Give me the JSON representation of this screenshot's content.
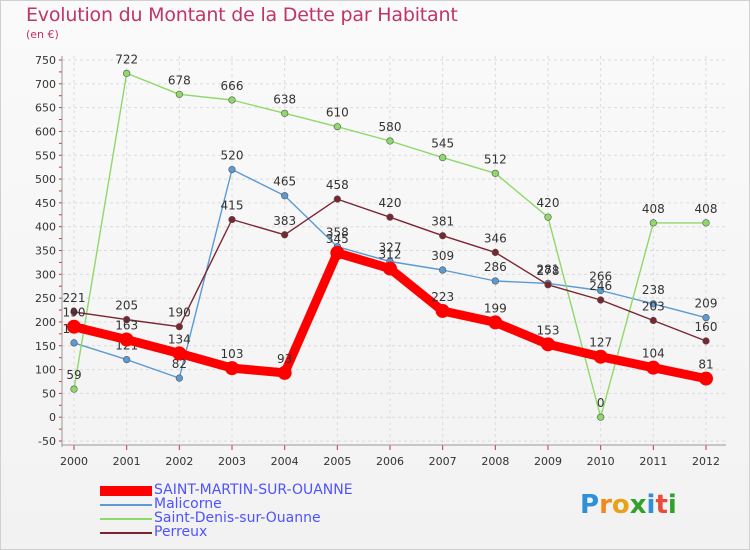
{
  "title": "Evolution du Montant de la Dette par Habitant",
  "subtitle": "(en €)",
  "logo": {
    "text": "Proxiti"
  },
  "chart_data": {
    "type": "line",
    "title": "Evolution du Montant de la Dette par Habitant",
    "ylabel": "(en €)",
    "x": [
      "2000",
      "2001",
      "2002",
      "2003",
      "2004",
      "2005",
      "2006",
      "2007",
      "2008",
      "2009",
      "2010",
      "2011",
      "2012"
    ],
    "ylim": [
      -50,
      750
    ],
    "yticks": [
      -50,
      0,
      50,
      100,
      150,
      200,
      250,
      300,
      350,
      400,
      450,
      500,
      550,
      600,
      650,
      700,
      750
    ],
    "grid": true,
    "legend": "bottom-left",
    "series": [
      {
        "name": "SAINT-MARTIN-SUR-OUANNE",
        "color": "#ff0000",
        "values": [
          190,
          163,
          134,
          103,
          93,
          345,
          312,
          223,
          199,
          153,
          127,
          104,
          81
        ],
        "labels": [
          "190",
          "163",
          "134",
          "103",
          "93",
          "345",
          "312",
          "223",
          "199",
          "153",
          "127",
          "104",
          "81"
        ]
      },
      {
        "name": "Malicorne",
        "color": "#5a9bd4",
        "values": [
          156,
          121,
          82,
          520,
          465,
          358,
          327,
          309,
          286,
          281,
          266,
          238,
          209
        ],
        "labels": [
          "156",
          "121",
          "82",
          "520",
          "465",
          "358",
          "327",
          "309",
          "286",
          "281",
          "266",
          "238",
          "209"
        ]
      },
      {
        "name": "Saint-Denis-sur-Ouanne",
        "color": "#8fd86a",
        "values": [
          59,
          722,
          678,
          666,
          638,
          610,
          580,
          545,
          512,
          420,
          0,
          408,
          408
        ],
        "labels": [
          "59",
          "722",
          "678",
          "666",
          "638",
          "610",
          "580",
          "545",
          "512",
          "420",
          "0",
          "408",
          "408"
        ]
      },
      {
        "name": "Perreux",
        "color": "#7a2630",
        "values": [
          221,
          205,
          190,
          415,
          383,
          458,
          420,
          381,
          346,
          278,
          246,
          203,
          160
        ],
        "labels": [
          "221",
          "205",
          "190",
          "415",
          "383",
          "458",
          "420",
          "381",
          "346",
          "278",
          "246",
          "203",
          "160"
        ]
      }
    ]
  }
}
